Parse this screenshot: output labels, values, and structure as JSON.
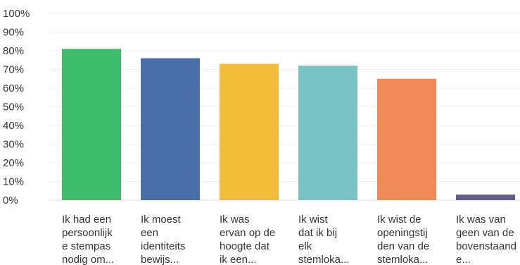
{
  "chart_data": {
    "type": "bar",
    "categories": [
      [
        "Ik had een",
        "persoonlijk",
        "e stempas",
        "nodig om..."
      ],
      [
        "Ik moest",
        "een",
        "identiteits",
        "bewijs..."
      ],
      [
        "Ik was",
        "ervan op de",
        "hoogte dat",
        "ik een..."
      ],
      [
        "Ik wist",
        "dat ik bij",
        "elk",
        "stemloka..."
      ],
      [
        "Ik wist de",
        "openingstij",
        "den van de",
        "stemloka..."
      ],
      [
        "Ik was van",
        "geen van de",
        "bovenstaand",
        "e..."
      ]
    ],
    "values": [
      81,
      76,
      73,
      72,
      65,
      3
    ],
    "colors": [
      "#3dbd6b",
      "#4a6ea8",
      "#f1bd3b",
      "#79c3c4",
      "#ef8a57",
      "#625c88"
    ],
    "ylim": [
      0,
      100
    ],
    "yticks": [
      "0%",
      "10%",
      "20%",
      "30%",
      "40%",
      "50%",
      "60%",
      "70%",
      "80%",
      "90%",
      "100%"
    ],
    "grid": true,
    "gridline_color": "#eeeeee"
  }
}
